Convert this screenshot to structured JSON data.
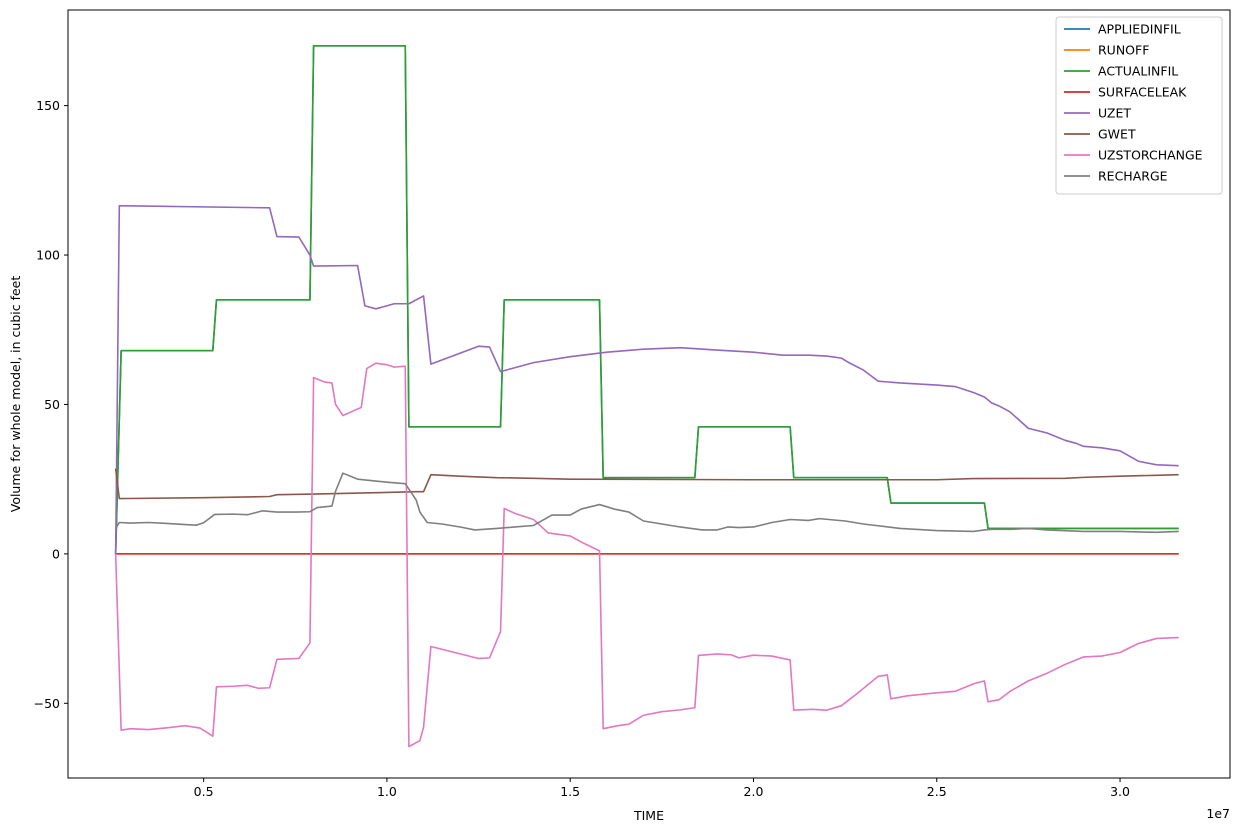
{
  "chart_data": {
    "type": "line",
    "title": "",
    "xlabel": "TIME",
    "ylabel": "Volume for whole model, in cubic feet",
    "x_offset_label": "1e7",
    "xlim": [
      1300000.0,
      33000000.0
    ],
    "ylim": [
      -75,
      182
    ],
    "xticks": [
      5000000,
      10000000,
      15000000,
      20000000,
      25000000,
      30000000
    ],
    "xtick_labels": [
      "0.5",
      "1.0",
      "1.5",
      "2.0",
      "2.5",
      "3.0"
    ],
    "yticks": [
      -50,
      0,
      50,
      100,
      150
    ],
    "ytick_labels": [
      "−50",
      "0",
      "50",
      "100",
      "150"
    ],
    "grid": false,
    "legend_position": "top-right",
    "series": [
      {
        "name": "APPLIEDINFIL",
        "color": "#1f77b4",
        "points": [
          [
            2600000.0,
            0
          ],
          [
            2750000.0,
            68
          ],
          [
            5250000.0,
            68
          ],
          [
            5350000.0,
            85
          ],
          [
            7900000.0,
            85
          ],
          [
            8000000.0,
            170
          ],
          [
            10500000.0,
            170
          ],
          [
            10600000.0,
            42.5
          ],
          [
            13100000.0,
            42.5
          ],
          [
            13200000.0,
            85
          ],
          [
            15800000.0,
            85
          ],
          [
            15900000.0,
            25.5
          ],
          [
            18400000.0,
            25.5
          ],
          [
            18500000.0,
            42.5
          ],
          [
            21000000.0,
            42.5
          ],
          [
            21100000.0,
            25.5
          ],
          [
            23650000.0,
            25.5
          ],
          [
            23750000.0,
            17
          ],
          [
            26300000.0,
            17
          ],
          [
            26400000.0,
            8.5
          ],
          [
            31600000.0,
            8.5
          ]
        ]
      },
      {
        "name": "RUNOFF",
        "color": "#ff7f0e",
        "points": [
          [
            2600000.0,
            0
          ],
          [
            31600000.0,
            0
          ]
        ]
      },
      {
        "name": "ACTUALINFIL",
        "color": "#2ca02c",
        "points": [
          [
            2600000.0,
            0
          ],
          [
            2750000.0,
            68
          ],
          [
            5250000.0,
            68
          ],
          [
            5350000.0,
            85
          ],
          [
            7900000.0,
            85
          ],
          [
            8000000.0,
            170
          ],
          [
            10500000.0,
            170
          ],
          [
            10600000.0,
            42.5
          ],
          [
            13100000.0,
            42.5
          ],
          [
            13200000.0,
            85
          ],
          [
            15800000.0,
            85
          ],
          [
            15900000.0,
            25.5
          ],
          [
            18400000.0,
            25.5
          ],
          [
            18500000.0,
            42.5
          ],
          [
            21000000.0,
            42.5
          ],
          [
            21100000.0,
            25.5
          ],
          [
            23650000.0,
            25.5
          ],
          [
            23750000.0,
            17
          ],
          [
            26300000.0,
            17
          ],
          [
            26400000.0,
            8.5
          ],
          [
            31600000.0,
            8.5
          ]
        ]
      },
      {
        "name": "SURFACELEAK",
        "color": "#d62728",
        "points": [
          [
            2600000.0,
            0
          ],
          [
            31600000.0,
            0
          ]
        ]
      },
      {
        "name": "UZET",
        "color": "#9467bd",
        "points": [
          [
            2600000.0,
            0
          ],
          [
            2700000.0,
            116.5
          ],
          [
            6800000.0,
            115.8
          ],
          [
            7000000.0,
            106.2
          ],
          [
            7600000.0,
            106
          ],
          [
            7900000.0,
            100
          ],
          [
            8000000.0,
            96.3
          ],
          [
            9200000.0,
            96.5
          ],
          [
            9400000.0,
            83
          ],
          [
            9700000.0,
            82
          ],
          [
            10200000.0,
            83.7
          ],
          [
            10600000.0,
            83.7
          ],
          [
            11000000.0,
            86.3
          ],
          [
            11200000.0,
            63.5
          ],
          [
            12500000.0,
            69.5
          ],
          [
            12800000.0,
            69.2
          ],
          [
            13100000.0,
            61
          ],
          [
            14000000.0,
            64
          ],
          [
            15000000.0,
            66
          ],
          [
            16000000.0,
            67.5
          ],
          [
            17000000.0,
            68.5
          ],
          [
            18000000.0,
            69
          ],
          [
            19000000.0,
            68.2
          ],
          [
            20000000.0,
            67.5
          ],
          [
            20800000.0,
            66.5
          ],
          [
            21500000.0,
            66.5
          ],
          [
            22000000.0,
            66.2
          ],
          [
            22400000.0,
            65.5
          ],
          [
            22600000.0,
            64
          ],
          [
            23000000.0,
            61.5
          ],
          [
            23400000.0,
            57.8
          ],
          [
            24000000.0,
            57.2
          ],
          [
            25000000.0,
            56.5
          ],
          [
            25500000.0,
            56
          ],
          [
            26000000.0,
            54
          ],
          [
            26300000.0,
            52.5
          ],
          [
            26500000.0,
            50.5
          ],
          [
            26700000.0,
            49.5
          ],
          [
            27000000.0,
            47.5
          ],
          [
            27500000.0,
            42
          ],
          [
            28000000.0,
            40.5
          ],
          [
            28500000.0,
            38
          ],
          [
            28800000.0,
            37
          ],
          [
            29000000.0,
            36
          ],
          [
            29500000.0,
            35.5
          ],
          [
            30000000.0,
            34.5
          ],
          [
            30500000.0,
            31
          ],
          [
            31000000.0,
            29.8
          ],
          [
            31600000.0,
            29.5
          ]
        ]
      },
      {
        "name": "GWET",
        "color": "#8c564b",
        "points": [
          [
            2600000.0,
            28.5
          ],
          [
            2700000.0,
            18.5
          ],
          [
            5000000.0,
            18.8
          ],
          [
            6800000.0,
            19.2
          ],
          [
            7000000.0,
            19.8
          ],
          [
            8000000.0,
            20
          ],
          [
            10800000.0,
            20.8
          ],
          [
            11000000.0,
            20.8
          ],
          [
            11200000.0,
            26.5
          ],
          [
            12000000.0,
            26
          ],
          [
            13000000.0,
            25.5
          ],
          [
            14000000.0,
            25.3
          ],
          [
            15000000.0,
            25
          ],
          [
            20000000.0,
            24.8
          ],
          [
            25000000.0,
            24.8
          ],
          [
            26000000.0,
            25.2
          ],
          [
            28500000.0,
            25.3
          ],
          [
            29000000.0,
            25.6
          ],
          [
            30000000.0,
            26
          ],
          [
            31000000.0,
            26.3
          ],
          [
            31600000.0,
            26.5
          ]
        ]
      },
      {
        "name": "UZSTORCHANGE",
        "color": "#e377c2",
        "points": [
          [
            2600000.0,
            0
          ],
          [
            2750000.0,
            -59
          ],
          [
            3000000.0,
            -58.5
          ],
          [
            3500000.0,
            -58.8
          ],
          [
            4000000.0,
            -58.2
          ],
          [
            4500000.0,
            -57.5
          ],
          [
            4900000.0,
            -58.3
          ],
          [
            5100000.0,
            -59.8
          ],
          [
            5250000.0,
            -61
          ],
          [
            5350000.0,
            -44.5
          ],
          [
            5800000.0,
            -44.3
          ],
          [
            6200000.0,
            -44
          ],
          [
            6500000.0,
            -45
          ],
          [
            6800000.0,
            -44.8
          ],
          [
            7000000.0,
            -35.3
          ],
          [
            7600000.0,
            -35
          ],
          [
            7900000.0,
            -29.8
          ],
          [
            8000000.0,
            59
          ],
          [
            8300000.0,
            57.5
          ],
          [
            8500000.0,
            57.2
          ],
          [
            8600000.0,
            50
          ],
          [
            8800000.0,
            46.3
          ],
          [
            9200000.0,
            48.5
          ],
          [
            9300000.0,
            49
          ],
          [
            9450000.0,
            62
          ],
          [
            9700000.0,
            63.8
          ],
          [
            10000000.0,
            63.3
          ],
          [
            10200000.0,
            62.5
          ],
          [
            10500000.0,
            62.8
          ],
          [
            10600000.0,
            -64.5
          ],
          [
            10900000.0,
            -62.5
          ],
          [
            11000000.0,
            -58
          ],
          [
            11200000.0,
            -31
          ],
          [
            12500000.0,
            -35
          ],
          [
            12800000.0,
            -34.8
          ],
          [
            13100000.0,
            -26
          ],
          [
            13200000.0,
            15.2
          ],
          [
            13500000.0,
            13.5
          ],
          [
            14000000.0,
            11.5
          ],
          [
            14400000.0,
            7
          ],
          [
            14700000.0,
            6.5
          ],
          [
            15000000.0,
            6
          ],
          [
            15300000.0,
            4
          ],
          [
            15800000.0,
            1
          ],
          [
            15900000.0,
            -58.5
          ],
          [
            16300000.0,
            -57.5
          ],
          [
            16600000.0,
            -57
          ],
          [
            17000000.0,
            -54
          ],
          [
            17500000.0,
            -52.8
          ],
          [
            18000000.0,
            -52.2
          ],
          [
            18400000.0,
            -51.5
          ],
          [
            18500000.0,
            -34
          ],
          [
            19000000.0,
            -33.5
          ],
          [
            19400000.0,
            -33.8
          ],
          [
            19600000.0,
            -34.8
          ],
          [
            20000000.0,
            -33.9
          ],
          [
            20500000.0,
            -34.2
          ],
          [
            21000000.0,
            -35.5
          ],
          [
            21100000.0,
            -52.3
          ],
          [
            21600000.0,
            -52
          ],
          [
            22000000.0,
            -52.3
          ],
          [
            22400000.0,
            -50.8
          ],
          [
            22800000.0,
            -47
          ],
          [
            23400000.0,
            -41
          ],
          [
            23650000.0,
            -40.5
          ],
          [
            23750000.0,
            -48.5
          ],
          [
            24200000.0,
            -47.5
          ],
          [
            24600000.0,
            -47
          ],
          [
            25000000.0,
            -46.5
          ],
          [
            25500000.0,
            -46
          ],
          [
            26000000.0,
            -43.5
          ],
          [
            26300000.0,
            -42.5
          ],
          [
            26400000.0,
            -49.5
          ],
          [
            26700000.0,
            -48.8
          ],
          [
            27000000.0,
            -46
          ],
          [
            27500000.0,
            -42.5
          ],
          [
            28000000.0,
            -40
          ],
          [
            28500000.0,
            -37
          ],
          [
            28800000.0,
            -35.5
          ],
          [
            29000000.0,
            -34.5
          ],
          [
            29500000.0,
            -34.2
          ],
          [
            30000000.0,
            -33
          ],
          [
            30500000.0,
            -30
          ],
          [
            31000000.0,
            -28.3
          ],
          [
            31600000.0,
            -28
          ]
        ]
      },
      {
        "name": "RECHARGE",
        "color": "#7f7f7f",
        "points": [
          [
            2600000.0,
            8.5
          ],
          [
            2700000.0,
            10.5
          ],
          [
            3000000.0,
            10.3
          ],
          [
            3500000.0,
            10.5
          ],
          [
            4000000.0,
            10.2
          ],
          [
            4500000.0,
            9.8
          ],
          [
            4800000.0,
            9.6
          ],
          [
            5000000.0,
            10.4
          ],
          [
            5300000.0,
            13.2
          ],
          [
            5800000.0,
            13.3
          ],
          [
            6200000.0,
            13.1
          ],
          [
            6600000.0,
            14.4
          ],
          [
            7000000.0,
            14
          ],
          [
            7500000.0,
            14
          ],
          [
            7900000.0,
            14.1
          ],
          [
            8100000.0,
            15.5
          ],
          [
            8500000.0,
            16
          ],
          [
            8600000.0,
            21
          ],
          [
            8800000.0,
            27
          ],
          [
            9200000.0,
            25
          ],
          [
            9600000.0,
            24.5
          ],
          [
            10000000.0,
            24
          ],
          [
            10500000.0,
            23.5
          ],
          [
            10800000.0,
            18
          ],
          [
            10900000.0,
            14
          ],
          [
            11100000.0,
            10.5
          ],
          [
            11500000.0,
            10
          ],
          [
            12000000.0,
            9
          ],
          [
            12400000.0,
            8
          ],
          [
            13000000.0,
            8.5
          ],
          [
            13500000.0,
            9
          ],
          [
            14000000.0,
            9.5
          ],
          [
            14500000.0,
            13
          ],
          [
            15000000.0,
            13
          ],
          [
            15300000.0,
            15
          ],
          [
            15800000.0,
            16.5
          ],
          [
            16200000.0,
            15
          ],
          [
            16600000.0,
            14
          ],
          [
            17000000.0,
            11
          ],
          [
            17500000.0,
            10
          ],
          [
            18000000.0,
            9
          ],
          [
            18600000.0,
            8
          ],
          [
            19000000.0,
            8
          ],
          [
            19300000.0,
            9
          ],
          [
            19600000.0,
            8.8
          ],
          [
            20000000.0,
            9
          ],
          [
            20500000.0,
            10.5
          ],
          [
            21000000.0,
            11.5
          ],
          [
            21500000.0,
            11.2
          ],
          [
            21800000.0,
            11.8
          ],
          [
            22500000.0,
            11
          ],
          [
            23000000.0,
            10
          ],
          [
            24000000.0,
            8.5
          ],
          [
            25000000.0,
            7.8
          ],
          [
            26000000.0,
            7.5
          ],
          [
            26300000.0,
            8
          ],
          [
            26500000.0,
            8.2
          ],
          [
            27000000.0,
            8.2
          ],
          [
            27500000.0,
            8.5
          ],
          [
            28000000.0,
            8
          ],
          [
            29000000.0,
            7.5
          ],
          [
            30000000.0,
            7.5
          ],
          [
            31000000.0,
            7.2
          ],
          [
            31600000.0,
            7.5
          ]
        ]
      }
    ]
  }
}
